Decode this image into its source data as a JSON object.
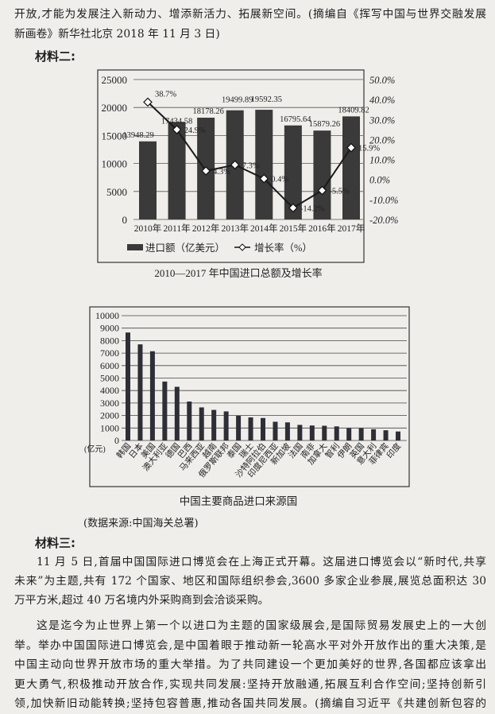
{
  "text_top": {
    "lines": [
      "开放,才能为发展注入新动力、增添新活力、拓展新空间。(摘编自《挥写中国与世界交融发展",
      "新画卷》新华社北京 2018 年 11 月 3 日)"
    ],
    "material2_heading": "材料二:"
  },
  "chart_data": [
    {
      "type": "bar",
      "title": "2010—2017 年中国进口总额及增长率",
      "categories": [
        "2010年",
        "2011年",
        "2012年",
        "2013年",
        "2014年",
        "2015年",
        "2016年",
        "2017年"
      ],
      "series": [
        {
          "name": "进口额（亿美元）",
          "type": "bar",
          "axis": "left",
          "values": [
            13948.29,
            17434.58,
            18178.26,
            19499.89,
            19592.35,
            16795.64,
            15879.26,
            18409.82
          ],
          "labels": [
            "13948.29",
            "17434.58",
            "18178.26",
            "19499.89",
            "19592.35",
            "16795.64",
            "15879.26",
            "18409.82"
          ]
        },
        {
          "name": "增长率（%）",
          "type": "line",
          "axis": "right",
          "marker": "diamond",
          "values": [
            38.7,
            24.9,
            4.3,
            7.3,
            0.4,
            -14.2,
            -5.5,
            15.9
          ],
          "labels": [
            "38.7%",
            "24.9%",
            "4.3%",
            "7.3%",
            "0.4%",
            "-14.2%",
            "-5.5%",
            "15.9%"
          ]
        }
      ],
      "y_left": {
        "range": [
          0,
          25000
        ],
        "ticks": [
          "0",
          "5000",
          "10000",
          "15000",
          "20000",
          "25000"
        ]
      },
      "y_right": {
        "range": [
          -20,
          50
        ],
        "ticks": [
          "-20.0%",
          "-10.0%",
          "0.0%",
          "10.0%",
          "20.0%",
          "30.0%",
          "40.0%",
          "50.0%"
        ]
      },
      "grid": true,
      "legend": "bottom",
      "colors": {
        "bar": "#3a3a3a",
        "line": "#1a1a1a"
      }
    },
    {
      "type": "bar",
      "title": "中国主要商品进口来源国",
      "ylabel": "(亿元)",
      "categories": [
        "韩国",
        "日本",
        "美国",
        "澳大利亚",
        "德国",
        "巴西",
        "马来西亚",
        "越南",
        "俄罗斯联邦",
        "泰国",
        "瑞士",
        "沙特阿拉伯",
        "印度尼西亚",
        "新加坡",
        "法国",
        "南非",
        "加拿大",
        "智利",
        "伊朗",
        "英国",
        "意大利",
        "菲律宾",
        "印度"
      ],
      "values": [
        8650,
        7700,
        7150,
        4720,
        4300,
        3120,
        2650,
        2450,
        2330,
        1980,
        1850,
        1800,
        1500,
        1450,
        1250,
        1200,
        1180,
        1130,
        980,
        980,
        900,
        820,
        720
      ],
      "ylim": [
        0,
        10000
      ],
      "y_ticks": [
        "0",
        "1000",
        "2000",
        "3000",
        "4000",
        "5000",
        "6000",
        "7000",
        "8000",
        "9000",
        "10000"
      ],
      "grid": true,
      "colors": {
        "bar": "#2e2e36"
      }
    }
  ],
  "data_source": "(数据来源:中国海关总署)",
  "text_bottom": {
    "material3_heading": "材料三:",
    "para1": [
      "11 月 5 日,首届中国国际进口博览会在上海正式开幕。这届进口博览会以“新时代,共享",
      "未来”为主题,共有 172 个国家、地区和国际组织参会,3600 多家企业参展,展览总面积达 30",
      "万平方米,超过 40 万名境内外采购商到会洽谈采购。"
    ],
    "para2": [
      "这是迄今为止世界上第一个以进口为主题的国家级展会,是国际贸易发展史上的一大创",
      "举。举办中国国际进口博览会,是中国着眼于推动新一轮高水平对外开放作出的重大决策,是",
      "中国主动向世界开放市场的重大举措。为了共同建设一个更加美好的世界,各国都应该拿出",
      "更大勇气,积极推动开放合作,实现共同发展:坚持开放融通,拓展互利合作空间;坚持创新引",
      "领,加快新旧动能转换;坚持包容普惠,推动各国共同发展。(摘编自习近平《共建创新包容的"
    ]
  }
}
